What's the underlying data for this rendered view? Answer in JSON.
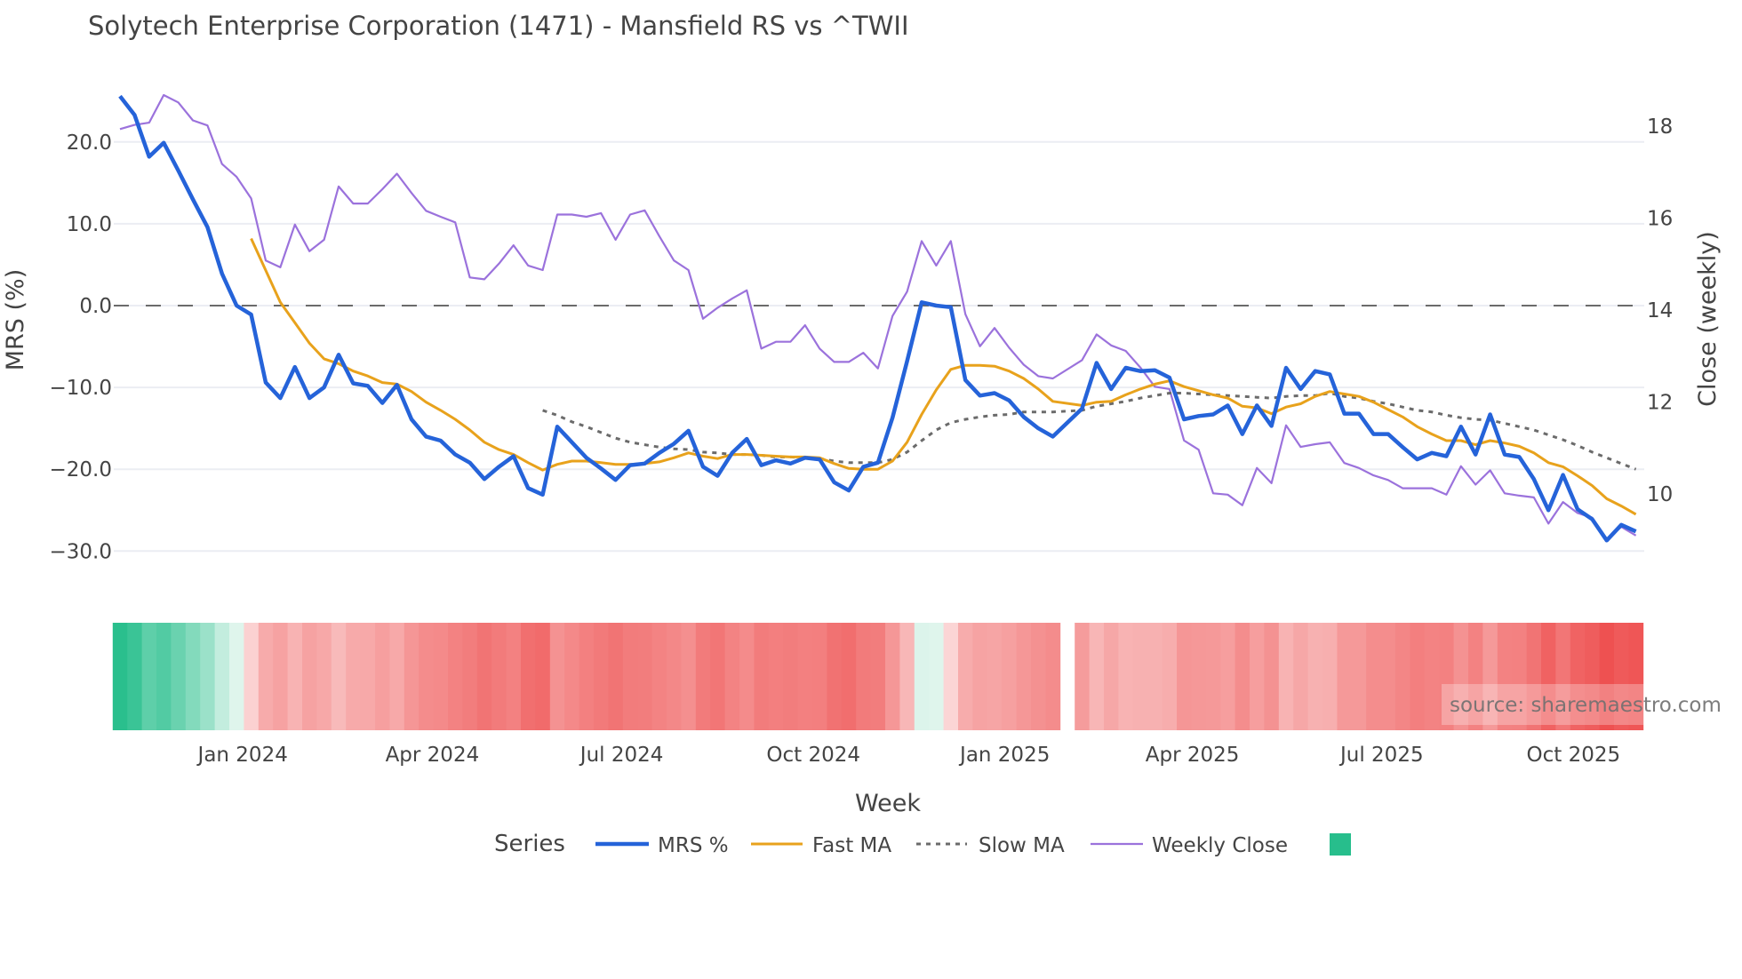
{
  "chart_data": {
    "type": "line",
    "title": "Solytech Enterprise Corporation (1471) - Mansfield RS vs ^TWII",
    "xlabel": "Week",
    "ylabel": "MRS (%)",
    "y2label": "Close (weekly)",
    "x_start": "2023-11-03",
    "x_frequency": "weekly",
    "x_missing": [
      "2025-01-31"
    ],
    "x_slots": 105,
    "ylim": [
      -32.5,
      27.5
    ],
    "y2lim": [
      8.7,
      18.9
    ],
    "grid": true,
    "legend_title": "Series",
    "legend_position": "bottom-center",
    "x_ticks": [
      {
        "date": "2024-01-01",
        "label": "Jan 2024"
      },
      {
        "date": "2024-04-01",
        "label": "Apr 2024"
      },
      {
        "date": "2024-07-01",
        "label": "Jul 2024"
      },
      {
        "date": "2024-10-01",
        "label": "Oct 2024"
      },
      {
        "date": "2025-01-01",
        "label": "Jan 2025"
      },
      {
        "date": "2025-04-01",
        "label": "Apr 2025"
      },
      {
        "date": "2025-07-01",
        "label": "Jul 2025"
      },
      {
        "date": "2025-10-01",
        "label": "Oct 2025"
      }
    ],
    "y_ticks": [
      {
        "value": 20,
        "label": "20.0"
      },
      {
        "value": 10,
        "label": "10.0"
      },
      {
        "value": 0,
        "label": "0.0"
      },
      {
        "value": -10,
        "label": "−10.0"
      },
      {
        "value": -20,
        "label": "−20.0"
      },
      {
        "value": -30,
        "label": "−30.0"
      }
    ],
    "y2_ticks": [
      {
        "value": 18,
        "label": "18"
      },
      {
        "value": 16,
        "label": "16"
      },
      {
        "value": 14,
        "label": "14"
      },
      {
        "value": 12,
        "label": "12"
      },
      {
        "value": 10,
        "label": "10"
      }
    ],
    "reference_line": {
      "value": 0,
      "style": "dashed",
      "color": "#6b6b6b"
    },
    "series": [
      {
        "name": "MRS %",
        "axis": "y",
        "color": "#2563d9",
        "style": "solid",
        "values": [
          25.6,
          23.3,
          18.2,
          19.9,
          16.5,
          13.0,
          9.6,
          3.9,
          0.0,
          -1.1,
          -9.4,
          -11.3,
          -7.5,
          -11.3,
          -10.0,
          -6.0,
          -9.5,
          -9.8,
          -11.9,
          -9.7,
          -13.9,
          -16.0,
          -16.5,
          -18.2,
          -19.2,
          -21.2,
          -19.7,
          -18.4,
          -22.3,
          -23.1,
          -14.8,
          -16.7,
          -18.6,
          -19.9,
          -21.3,
          -19.5,
          -19.3,
          -18.0,
          -16.9,
          -15.3,
          -19.7,
          -20.8,
          -18.0,
          -16.3,
          -19.5,
          -18.9,
          -19.3,
          -18.6,
          -18.8,
          -21.6,
          -22.6,
          -19.7,
          -19.2,
          -13.7,
          -6.8,
          0.4,
          0.0,
          -0.2,
          -9.1,
          -11.0,
          -10.7,
          -11.6,
          -13.6,
          -15.0,
          -16.0,
          -12.6,
          -7.0,
          -10.2,
          -7.6,
          -8.0,
          -7.9,
          -8.8,
          -13.9,
          -13.5,
          -13.3,
          -12.2,
          -15.7,
          -12.2,
          -14.7,
          -7.6,
          -10.2,
          -8.0,
          -8.4,
          -13.2,
          -13.2,
          -15.7,
          -15.7,
          -17.3,
          -18.8,
          -18.0,
          -18.4,
          -14.8,
          -18.2,
          -13.3,
          -18.2,
          -18.5,
          -21.2,
          -25.0,
          -20.7,
          -24.9,
          -26.1,
          -28.7,
          -26.8,
          -27.6
        ]
      },
      {
        "name": "Fast MA",
        "axis": "y",
        "color": "#e8a21c",
        "style": "solid",
        "values": [
          null,
          null,
          null,
          null,
          null,
          null,
          null,
          null,
          null,
          8.2,
          4.3,
          0.4,
          -2.1,
          -4.6,
          -6.5,
          -7.1,
          -8.0,
          -8.6,
          -9.4,
          -9.6,
          -10.5,
          -11.8,
          -12.8,
          -13.9,
          -15.2,
          -16.7,
          -17.6,
          -18.2,
          -19.2,
          -20.1,
          -19.4,
          -19.0,
          -19.0,
          -19.2,
          -19.4,
          -19.4,
          -19.3,
          -19.1,
          -18.6,
          -18.0,
          -18.4,
          -18.7,
          -18.2,
          -18.2,
          -18.3,
          -18.4,
          -18.5,
          -18.5,
          -18.6,
          -19.3,
          -19.9,
          -20.0,
          -20.0,
          -19.0,
          -16.7,
          -13.3,
          -10.3,
          -7.8,
          -7.3,
          -7.3,
          -7.4,
          -8.0,
          -8.9,
          -10.2,
          -11.7,
          -12.2,
          -11.8,
          -11.7,
          -10.9,
          -10.2,
          -9.6,
          -9.2,
          -9.9,
          -10.4,
          -10.9,
          -11.3,
          -12.3,
          -12.5,
          -13.2,
          -12.4,
          -12.0,
          -11.1,
          -10.5,
          -10.8,
          -11.1,
          -11.8,
          -12.7,
          -13.6,
          -14.8,
          -15.7,
          -16.5,
          -16.5,
          -17.0,
          -16.5,
          -16.8,
          -17.2,
          -18.0,
          -19.2,
          -19.7,
          -20.8,
          -22.0,
          -23.6,
          -24.5,
          -25.5
        ]
      },
      {
        "name": "Slow MA",
        "axis": "y",
        "color": "#6b6b6b",
        "style": "dotted",
        "values": [
          null,
          null,
          null,
          null,
          null,
          null,
          null,
          null,
          null,
          null,
          null,
          null,
          null,
          null,
          null,
          null,
          null,
          null,
          null,
          null,
          null,
          null,
          null,
          null,
          null,
          null,
          null,
          null,
          null,
          -12.8,
          -13.4,
          -14.2,
          -14.8,
          -15.5,
          -16.2,
          -16.7,
          -17.0,
          -17.3,
          -17.5,
          -17.6,
          -17.9,
          -18.0,
          -18.2,
          -18.2,
          -18.3,
          -18.5,
          -18.5,
          -18.6,
          -18.7,
          -19.0,
          -19.2,
          -19.2,
          -19.2,
          -18.8,
          -17.9,
          -16.5,
          -15.2,
          -14.3,
          -13.9,
          -13.6,
          -13.4,
          -13.3,
          -13.0,
          -13.0,
          -13.0,
          -12.8,
          -12.3,
          -12.0,
          -11.7,
          -11.3,
          -11.0,
          -10.7,
          -10.7,
          -10.8,
          -10.9,
          -11.0,
          -11.1,
          -11.2,
          -11.3,
          -11.1,
          -11.0,
          -11.0,
          -10.7,
          -11.1,
          -11.3,
          -11.7,
          -12.0,
          -12.4,
          -12.8,
          -13.0,
          -13.4,
          -13.7,
          -13.9,
          -14.0,
          -14.4,
          -14.8,
          -15.2,
          -15.8,
          -16.4,
          -17.1,
          -17.9,
          -18.6,
          -19.3,
          -20.0
        ]
      },
      {
        "name": "Weekly Close",
        "axis": "y2",
        "color": "#9b72dc",
        "style": "solid",
        "values": [
          17.94,
          18.03,
          18.08,
          18.68,
          18.52,
          18.13,
          18.02,
          17.18,
          16.9,
          16.43,
          15.08,
          14.93,
          15.86,
          15.28,
          15.53,
          16.69,
          16.32,
          16.32,
          16.63,
          16.97,
          16.55,
          16.16,
          16.03,
          15.91,
          14.71,
          14.67,
          15.01,
          15.41,
          14.97,
          14.87,
          16.08,
          16.08,
          16.03,
          16.11,
          15.53,
          16.08,
          16.17,
          15.61,
          15.08,
          14.87,
          13.81,
          14.05,
          14.25,
          14.43,
          13.16,
          13.31,
          13.31,
          13.67,
          13.16,
          12.87,
          12.87,
          13.07,
          12.73,
          13.87,
          14.4,
          15.5,
          14.97,
          15.5,
          13.91,
          13.21,
          13.61,
          13.18,
          12.81,
          12.56,
          12.51,
          12.91,
          13.47,
          13.23,
          13.11,
          12.75,
          12.33,
          12.28,
          11.16,
          10.96,
          10.01,
          9.98,
          9.75,
          10.56,
          10.23,
          11.49,
          11.02,
          11.08,
          11.12,
          10.67,
          10.56,
          10.4,
          10.3,
          10.12,
          10.12,
          10.12,
          9.98,
          10.6,
          10.2,
          10.51,
          10.01,
          9.96,
          9.92,
          9.35,
          9.82,
          9.58,
          9.48,
          9.01,
          9.28,
          9.09
        ]
      }
    ],
    "heatmap": {
      "source_series": "MRS %",
      "colorscale": {
        "positive_max": "#27be8c",
        "positive_min": "#dff5ec",
        "negative_min": "#fbd6d6",
        "negative_max": "#ee5050"
      },
      "range": [
        -29,
        26
      ],
      "legend_color": "#27be8c"
    },
    "annotation": "source: sharemaestro.com"
  }
}
